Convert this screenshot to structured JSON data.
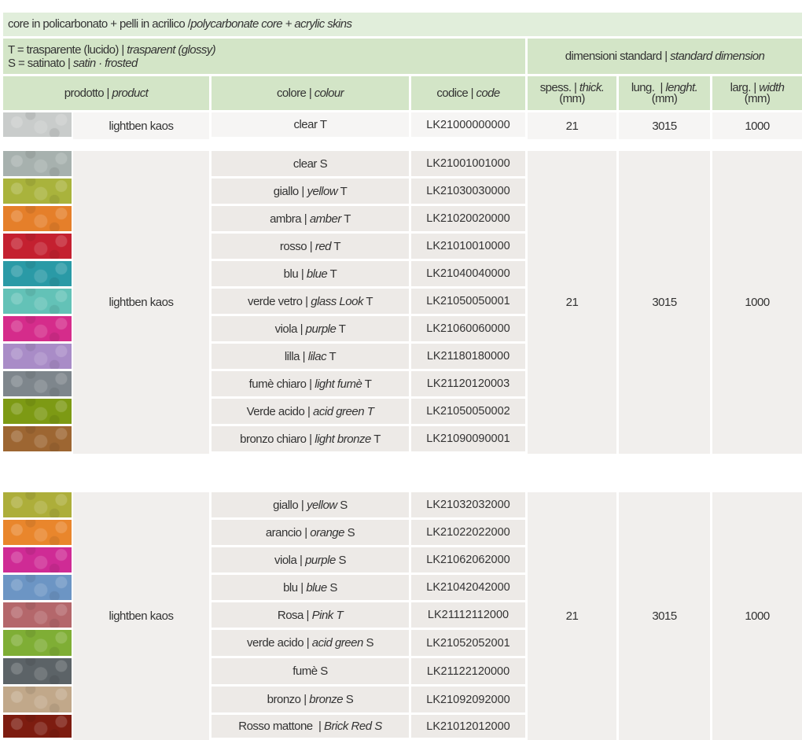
{
  "header": {
    "title_it": "core in policarbonato + pelli in acrilico /",
    "title_en": "polycarbonate core + acrylic skins",
    "legend_t_it": "T = trasparente (lucido) | ",
    "legend_t_en": "trasparent (glossy)",
    "legend_s_it": "S = satinato | ",
    "legend_s_en": "satin · frosted",
    "dim_it": "dimensioni standard | ",
    "dim_en": "standard dimension"
  },
  "columns": {
    "product_it": "prodotto | ",
    "product_en": "product",
    "colour_it": "colore | ",
    "colour_en": "colour",
    "code_it": "codice | ",
    "code_en": "code",
    "thick_it": "spess. | ",
    "thick_en": "thick.",
    "thick_unit": "(mm)",
    "length_it": "lung.  | ",
    "length_en": "lenght.",
    "length_unit": "(mm)",
    "width_it": "larg. | ",
    "width_en": "width",
    "width_unit": "(mm)"
  },
  "groups": [
    {
      "product": "lightben kaos",
      "thickness": "21",
      "length": "3015",
      "width": "1000",
      "rows": [
        {
          "it": "clear T",
          "en": "",
          "suffix": "",
          "code": "LK21000000000",
          "color": "#c9cccb"
        }
      ]
    },
    {
      "product": "lightben kaos",
      "thickness": "21",
      "length": "3015",
      "width": "1000",
      "rows": [
        {
          "it": "clear S",
          "en": "",
          "suffix": "",
          "code": "LK21001001000",
          "color": "#a7b1ae"
        },
        {
          "it": "giallo | ",
          "en": "yellow",
          "suffix": " T",
          "code": "LK21030030000",
          "color": "#a9b33c"
        },
        {
          "it": "ambra | ",
          "en": "amber",
          "suffix": " T",
          "code": "LK21020020000",
          "color": "#e57f2a"
        },
        {
          "it": "rosso | ",
          "en": "red",
          "suffix": " T",
          "code": "LK21010010000",
          "color": "#c42030"
        },
        {
          "it": "blu | ",
          "en": "blue",
          "suffix": " T",
          "code": "LK21040040000",
          "color": "#2a9aa6"
        },
        {
          "it": "verde vetro | ",
          "en": "glass Look",
          "suffix": " T",
          "code": "LK21050050001",
          "color": "#63c2b7"
        },
        {
          "it": "viola | ",
          "en": "purple",
          "suffix": " T",
          "code": "LK21060060000",
          "color": "#d52c8b"
        },
        {
          "it": "lilla | ",
          "en": "lilac",
          "suffix": " T",
          "code": "LK21180180000",
          "color": "#a98cc7"
        },
        {
          "it": "fumè chiaro | ",
          "en": "light fumè",
          "suffix": " T",
          "code": "LK21120120003",
          "color": "#7e868c"
        },
        {
          "it": "Verde acido | ",
          "en": "acid green T",
          "suffix": "",
          "code": "LK21050050002",
          "color": "#7d9a14"
        },
        {
          "it": "bronzo chiaro | ",
          "en": "light bronze",
          "suffix": " T",
          "code": "LK21090090001",
          "color": "#9d6632"
        }
      ]
    },
    {
      "product": "lightben kaos",
      "thickness": "21",
      "length": "3015",
      "width": "1000",
      "rows": [
        {
          "it": "giallo | ",
          "en": "yellow",
          "suffix": " S",
          "code": "LK21032032000",
          "color": "#adae3a"
        },
        {
          "it": "arancio | ",
          "en": "orange",
          "suffix": " S",
          "code": "LK21022022000",
          "color": "#e9862c"
        },
        {
          "it": "viola | ",
          "en": "purple",
          "suffix": " S",
          "code": "LK21062062000",
          "color": "#cf2b95"
        },
        {
          "it": "blu | ",
          "en": "blue",
          "suffix": " S",
          "code": "LK21042042000",
          "color": "#6c95c4"
        },
        {
          "it": "Rosa | ",
          "en": "Pink T",
          "suffix": "",
          "code": "LK21112112000",
          "color": "#b4676b"
        },
        {
          "it": "verde acido | ",
          "en": "acid green",
          "suffix": " S",
          "code": "LK21052052001",
          "color": "#7fae35"
        },
        {
          "it": "fumè S",
          "en": "",
          "suffix": "",
          "code": "LK21122120000",
          "color": "#5c6367"
        },
        {
          "it": "bronzo | ",
          "en": "bronze",
          "suffix": " S",
          "code": "LK21092092000",
          "color": "#c1a88a"
        },
        {
          "it": "Rosso mattone  | ",
          "en": "Brick Red S",
          "suffix": "",
          "code": "LK21012012000",
          "color": "#7d1c10"
        }
      ]
    }
  ]
}
